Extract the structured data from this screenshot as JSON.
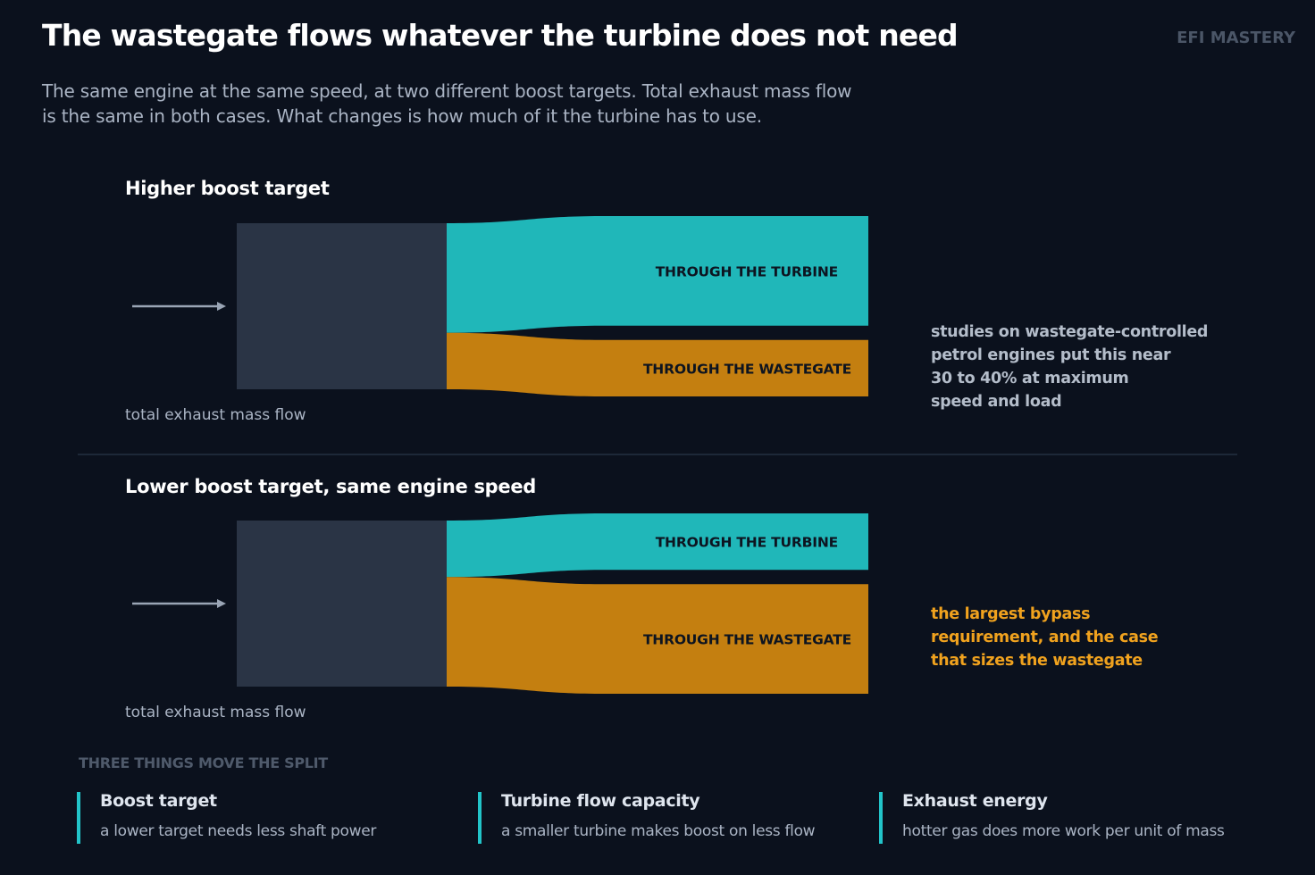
{
  "header": {
    "title": "The wastegate flows whatever the turbine does not need",
    "brand": "EFI MASTERY",
    "subtitle_lines": [
      "The same engine at the same speed, at two different boost targets. Total exhaust mass flow",
      "is the same in both cases. What changes is how much of it the turbine has to use."
    ]
  },
  "colors": {
    "background": "#0b111d",
    "source_block": "#2a3445",
    "turbine": "#20b7b9",
    "wastegate": "#c47f10",
    "note_highlight": "#f0a21e",
    "factor_accent": "#22c4c9"
  },
  "scenarios": [
    {
      "title": "Higher boost target",
      "source_label": "total exhaust mass flow",
      "turbine_label": "THROUGH THE TURBINE",
      "wastegate_label": "THROUGH THE WASTEGATE",
      "turbine_share": 0.66,
      "wastegate_share": 0.34,
      "note_lines": [
        "studies on wastegate-controlled",
        "petrol engines put this near",
        "30 to 40% at maximum",
        "speed and load"
      ],
      "note_style": "muted"
    },
    {
      "title": "Lower boost target, same engine speed",
      "source_label": "total exhaust mass flow",
      "turbine_label": "THROUGH THE TURBINE",
      "wastegate_label": "THROUGH THE WASTEGATE",
      "turbine_share": 0.34,
      "wastegate_share": 0.66,
      "note_lines": [
        "the largest bypass",
        "requirement, and the case",
        "that sizes the wastegate"
      ],
      "note_style": "highlight"
    }
  ],
  "factors": {
    "heading": "THREE THINGS MOVE THE SPLIT",
    "items": [
      {
        "title": "Boost target",
        "description": "a lower target needs less shaft power"
      },
      {
        "title": "Turbine flow capacity",
        "description": "a smaller turbine makes boost on less flow"
      },
      {
        "title": "Exhaust energy",
        "description": "hotter gas does more work per unit of mass"
      }
    ]
  }
}
